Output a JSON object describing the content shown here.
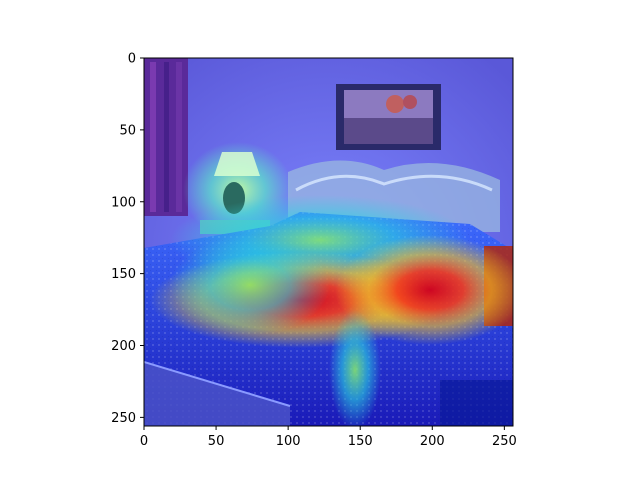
{
  "chart_data": {
    "type": "heatmap",
    "title": "",
    "xlabel": "",
    "ylabel": "",
    "xlim": [
      0,
      256
    ],
    "ylim": [
      256,
      0
    ],
    "grid": false,
    "x_ticks": [
      0,
      50,
      100,
      150,
      200,
      250
    ],
    "y_ticks": [
      0,
      50,
      100,
      150,
      200,
      250
    ],
    "x_tick_labels": [
      "0",
      "50",
      "100",
      "150",
      "200",
      "250"
    ],
    "y_tick_labels": [
      "0",
      "50",
      "100",
      "150",
      "200",
      "250"
    ],
    "colormap": "jet",
    "background_image": "bedroom photo (bed with patterned quilt, headboard, framed picture, lamp, curtain)",
    "hotspots": [
      {
        "x": 160,
        "y": 178,
        "intensity": 1.0
      },
      {
        "x": 230,
        "y": 175,
        "intensity": 0.85
      },
      {
        "x": 110,
        "y": 168,
        "intensity": 0.85
      },
      {
        "x": 140,
        "y": 150,
        "intensity": 0.55
      },
      {
        "x": 65,
        "y": 95,
        "intensity": 0.45
      }
    ]
  }
}
